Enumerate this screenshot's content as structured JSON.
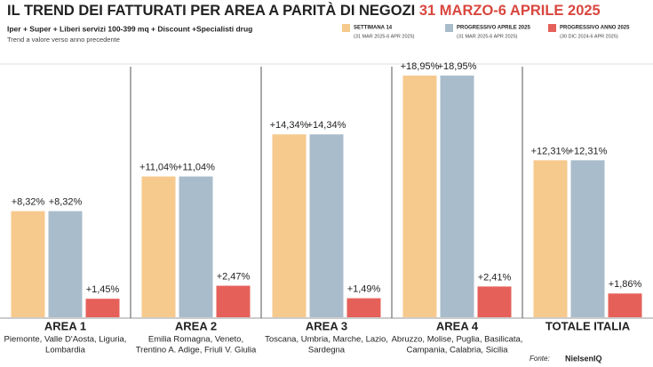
{
  "chart_data": {
    "type": "bar",
    "title": "IL TREND DEI FATTURATI PER AREA A PARITÀ DI NEGOZI",
    "title_highlight": "31 MARZO-6 APRILE 2025",
    "subtitle": "Iper + Super + Liberi servizi 100-399 mq + Discount +Specialisti drug",
    "note": "Trend a valore verso anno precedente",
    "categories": [
      "AREA 1",
      "AREA 2",
      "AREA 3",
      "AREA 4",
      "TOTALE ITALIA"
    ],
    "category_notes": [
      [
        "Piemonte, Valle D'Aosta, Liguria,",
        "Lombardia"
      ],
      [
        "Emilia Romagna, Veneto,",
        "Trentino A. Adige, Friuli V. Giulia"
      ],
      [
        "Toscana, Umbria, Marche, Lazio,",
        "Sardegna"
      ],
      [
        "Abruzzo, Molise, Puglia, Basilicata,",
        "Campania, Calabria, Sicilia"
      ],
      []
    ],
    "series": [
      {
        "name": "SETTIMANA 14",
        "period": "(31 MAR 2025-6 APR 2025)",
        "color": "#f6c98c",
        "values": [
          8.32,
          11.04,
          14.34,
          18.95,
          12.31
        ],
        "value_labels": [
          "+8,32%",
          "+11,04%",
          "+14,34%",
          "+18,95%",
          "+12,31%"
        ]
      },
      {
        "name": "PROGRESSIVO APRILE 2025",
        "period": "(31 MAR 2025-6 APR 2025)",
        "color": "#a9bccb",
        "values": [
          8.32,
          11.04,
          14.34,
          18.95,
          12.31
        ],
        "value_labels": [
          "+8,32%",
          "+11,04%",
          "+14,34%",
          "+18,95%",
          "+12,31%"
        ]
      },
      {
        "name": "PROGRESSIVO ANNO 2025",
        "period": "(30 DIC 2024-6 APR 2025)",
        "color": "#e6605a",
        "values": [
          1.45,
          2.47,
          1.49,
          2.41,
          1.86
        ],
        "value_labels": [
          "+1,45%",
          "+2,47%",
          "+1,49%",
          "+2,41%",
          "+1,86%"
        ]
      }
    ],
    "source_label": "Fonte:",
    "source": "NielsenIQ"
  }
}
